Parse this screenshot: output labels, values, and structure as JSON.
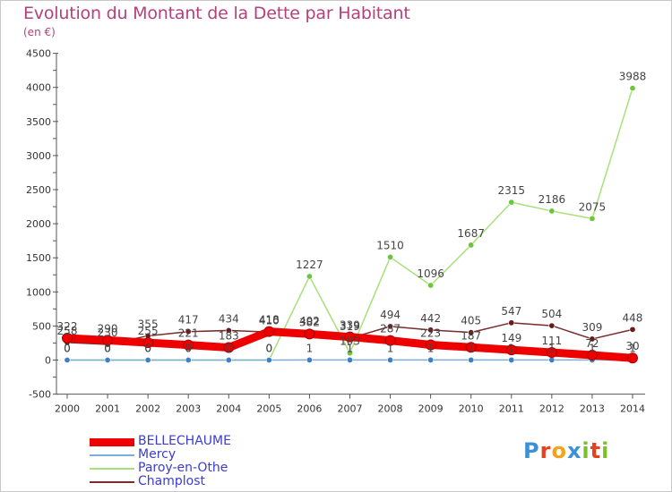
{
  "title": "Evolution du Montant de la Dette par Habitant",
  "subtitle": "(en €)",
  "logo": {
    "text": "Proxiti",
    "letters": [
      "P",
      "r",
      "o",
      "x",
      "i",
      "t",
      "i"
    ],
    "colors": [
      "#3d8fd6",
      "#e8401c",
      "#f3a21b",
      "#3d8fd6",
      "#7cbf2a",
      "#e8401c",
      "#7cbf2a"
    ]
  },
  "colors": {
    "axis": "#555555",
    "grid": "#dddddd",
    "tick_label": "#333333",
    "data_label": "#444444",
    "title": "#b5407b",
    "legend_text": "#3b3bd6"
  },
  "chart_data": {
    "type": "line",
    "title": "Evolution du Montant de la Dette par Habitant",
    "subtitle": "(en €)",
    "xlabel": "",
    "ylabel": "",
    "x": [
      "2000",
      "2001",
      "2002",
      "2003",
      "2004",
      "2005",
      "2006",
      "2007",
      "2008",
      "2009",
      "2010",
      "2011",
      "2012",
      "2013",
      "2014"
    ],
    "ylim": [
      -500,
      4500
    ],
    "yticks": [
      -500,
      0,
      500,
      1000,
      1500,
      2000,
      2500,
      3000,
      3500,
      4000,
      4500
    ],
    "grid": false,
    "legend_position": "bottom-left",
    "series": [
      {
        "name": "BELLECHAUME",
        "color": "#ee0000",
        "point_color": "#ee0000",
        "width": "thick",
        "values": [
          322,
          290,
          255,
          221,
          183,
          418,
          382,
          339,
          287,
          223,
          187,
          149,
          111,
          72,
          30
        ]
      },
      {
        "name": "Mercy",
        "color": "#7aaed6",
        "point_color": "#3f7fc6",
        "width": "thin",
        "values": [
          0,
          0,
          0,
          0,
          0,
          0,
          1,
          1,
          1,
          1,
          1,
          1,
          1,
          1,
          1
        ]
      },
      {
        "name": "Paroy-en-Othe",
        "color": "#a8e07a",
        "point_color": "#6cc53b",
        "width": "thin",
        "values": [
          0,
          0,
          0,
          0,
          0,
          0,
          1227,
          103,
          1510,
          1096,
          1687,
          2315,
          2186,
          2075,
          3988
        ]
      },
      {
        "name": "Champlost",
        "color": "#7a2b2b",
        "point_color": "#6a1c1c",
        "width": "thin",
        "values": [
          258,
          230,
          355,
          417,
          434,
          410,
          402,
          319,
          494,
          442,
          405,
          547,
          504,
          309,
          448
        ]
      }
    ]
  }
}
